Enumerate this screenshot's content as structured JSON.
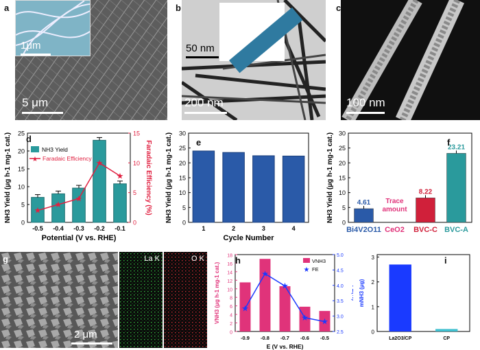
{
  "panel_labels": {
    "a": "a",
    "b": "b",
    "c": "c",
    "d": "d",
    "e": "e",
    "f": "f",
    "g": "g",
    "h": "h",
    "i": "i"
  },
  "micrographs": {
    "a": {
      "inset_scale": "1μm",
      "main_scale": "5 μm"
    },
    "b": {
      "inset_scale": "50 nm",
      "main_scale": "200 nm"
    },
    "c": {
      "main_scale": "100 nm"
    },
    "g": {
      "scale": "2 μm",
      "map1": "La K",
      "map2": "O K"
    }
  },
  "colors": {
    "teal": "#2a9a9c",
    "red": "#e02040",
    "blue": "#2a5aa8",
    "crimson": "#d0203a",
    "magenta": "#e0337a",
    "royal": "#1a3aff",
    "cyan": "#40c0d0"
  },
  "chart_data": [
    {
      "id": "d",
      "type": "bar",
      "categories": [
        "-0.5",
        "-0.4",
        "-0.3",
        "-0.2",
        "-0.1"
      ],
      "series": [
        {
          "name": "NH3 Yield",
          "values": [
            7.0,
            8.0,
            9.6,
            23.0,
            10.8
          ]
        }
      ],
      "line_series": [
        {
          "name": "Faradaic Efficiency",
          "values": [
            2.0,
            3.0,
            4.0,
            10.0,
            7.8
          ]
        }
      ],
      "xlabel": "Potential (V vs. RHE)",
      "ylabel": "NH3 Yield (μg h-1 mg-1 cat.)",
      "y2label": "Faradaic Efficiency (%)",
      "yticks": [
        "0",
        "5",
        "10",
        "15",
        "20",
        "25"
      ],
      "y2ticks": [
        "0",
        "5",
        "10",
        "15"
      ],
      "ylim": [
        0,
        25
      ],
      "y2lim": [
        0,
        15
      ],
      "legend": "top-left"
    },
    {
      "id": "e",
      "type": "bar",
      "categories": [
        "1",
        "2",
        "3",
        "4"
      ],
      "values": [
        24.0,
        23.5,
        22.4,
        22.3
      ],
      "xlabel": "Cycle Number",
      "ylabel": "NH3 Yield (μg h-1 mg-1 cat.)",
      "yticks": [
        "0",
        "5",
        "10",
        "15",
        "20",
        "25",
        "30"
      ],
      "ylim": [
        0,
        30
      ]
    },
    {
      "id": "f",
      "type": "bar",
      "categories": [
        "Bi4V2O11",
        "CeO2",
        "BVC-C",
        "BVC-A"
      ],
      "values": [
        4.61,
        0,
        8.22,
        23.21
      ],
      "data_labels": [
        "4.61",
        "Trace amount",
        "8.22",
        "23.21"
      ],
      "ylabel": "NH3 Yield (μg h-1 mg-1 cat.)",
      "yticks": [
        "0",
        "5",
        "10",
        "15",
        "20",
        "25",
        "30"
      ],
      "ylim": [
        0,
        30
      ]
    },
    {
      "id": "h",
      "type": "bar",
      "categories": [
        "-0.9",
        "-0.8",
        "-0.7",
        "-0.6",
        "-0.5"
      ],
      "series": [
        {
          "name": "VNH3",
          "values": [
            11.5,
            17.0,
            10.6,
            5.8,
            4.8
          ]
        }
      ],
      "line_series": [
        {
          "name": "FE",
          "values": [
            3.25,
            4.38,
            3.98,
            2.95,
            2.82
          ]
        }
      ],
      "xlabel": "E (V vs. RHE)",
      "ylabel": "VNH3 (μg h-1 mg-1 cat.)",
      "y2label": "FE(%)",
      "yticks": [
        "0",
        "2",
        "4",
        "6",
        "8",
        "10",
        "12",
        "14",
        "16",
        "18"
      ],
      "y2ticks": [
        "2.5",
        "3.0",
        "3.5",
        "4.0",
        "4.5",
        "5.0"
      ],
      "ylim": [
        0,
        18
      ],
      "y2lim": [
        2.5,
        5.0
      ],
      "legend": "top-right"
    },
    {
      "id": "i",
      "type": "bar",
      "categories": [
        "La2O3/CP",
        "CP"
      ],
      "values": [
        2.7,
        0.1
      ],
      "ylabel": "mNH3 (μg)",
      "yticks": [
        "0",
        "1",
        "2",
        "3"
      ],
      "ylim": [
        0,
        3.1
      ]
    }
  ]
}
